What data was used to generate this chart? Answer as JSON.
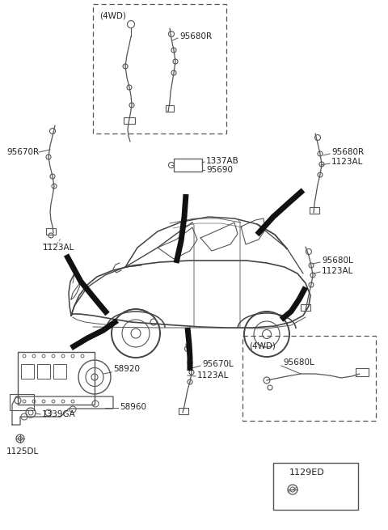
{
  "bg_color": "#ffffff",
  "fig_width": 4.8,
  "fig_height": 6.55,
  "dpi": 100,
  "labels": {
    "4WD_top": "(4WD)",
    "95680R_top_box": "95680R",
    "95670R": "95670R",
    "1123AL_left": "1123AL",
    "1337AB": "1337AB",
    "95690": "95690",
    "95680R_right": "95680R",
    "1123AL_right_top": "1123AL",
    "95680L_right": "95680L",
    "1123AL_right_bot": "1123AL",
    "4WD_bottom": "(4WD)",
    "95680L_bottom": "95680L",
    "95670L": "95670L",
    "1123AL_bottom": "1123AL",
    "58920": "58920",
    "1339GA": "1339GA",
    "58960": "58960",
    "1125DL": "1125DL",
    "1129ED": "1129ED"
  }
}
